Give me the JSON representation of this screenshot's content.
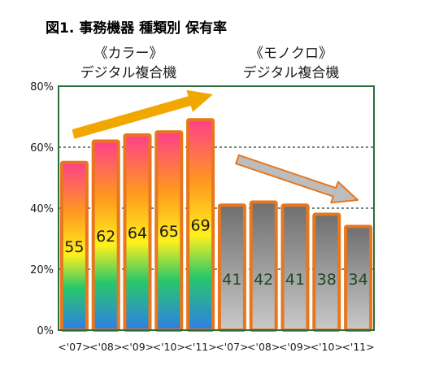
{
  "title": "図1. 事務機器 種類別 保有率",
  "colors": {
    "plot_border": "#2e6b3a",
    "gridline": "#1a4020",
    "bar_border": "#e8761e",
    "color_bar_gradient": [
      "#ff3f8a",
      "#ff9a1e",
      "#fff01c",
      "#28c76a",
      "#2f7ee8"
    ],
    "mono_bar_gradient": [
      "#6f6f6f",
      "#c9c9c9"
    ],
    "trend_up_arrow": "#f0a800",
    "trend_down_arrow": "#bdbdbd",
    "trend_down_arrow_outline": "#e8761e",
    "color_value_text": "#1a1a1a",
    "mono_value_text": "#1f4a22"
  },
  "chart_data": {
    "type": "bar",
    "title": "図1. 事務機器 種類別 保有率",
    "ylabel": "",
    "xlabel": "",
    "ylim": [
      0,
      80
    ],
    "y_ticks": [
      "0%",
      "20%",
      "40%",
      "60%",
      "80%"
    ],
    "y_tick_values": [
      0,
      20,
      40,
      60,
      80
    ],
    "grid": "dotted horizontal",
    "groups": [
      {
        "label_line1": "《カラー》",
        "label_line2": "デジタル複合機",
        "style": "color",
        "trend": "up",
        "categories": [
          "<'07>",
          "<'08>",
          "<'09>",
          "<'10>",
          "<'11>"
        ],
        "values": [
          55,
          62,
          64,
          65,
          69
        ]
      },
      {
        "label_line1": "《モノクロ》",
        "label_line2": "デジタル複合機",
        "style": "mono",
        "trend": "down",
        "categories": [
          "<'07>",
          "<'08>",
          "<'09>",
          "<'10>",
          "<'11>"
        ],
        "values": [
          41,
          42,
          41,
          38,
          34
        ]
      }
    ]
  }
}
